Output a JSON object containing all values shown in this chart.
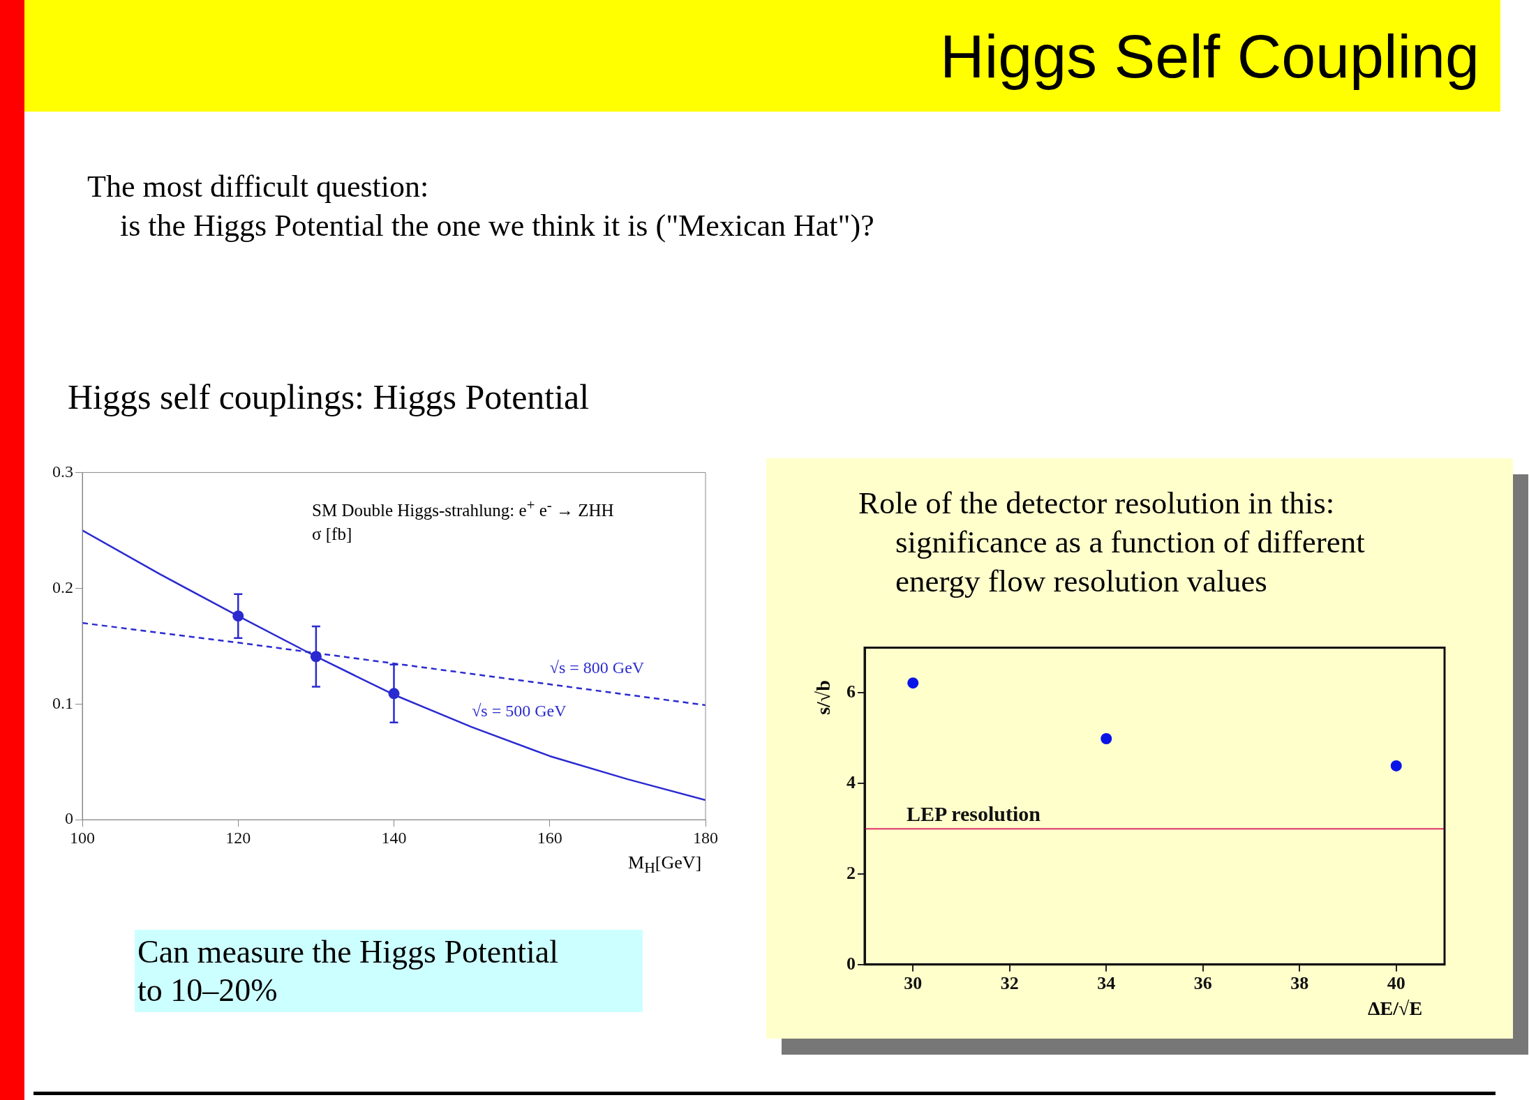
{
  "chart_data": [
    {
      "type": "line",
      "subtitle": "Higgs self couplings: Higgs Potential",
      "xlabel": "M$_{H}$[GeV]",
      "xlim": [
        100,
        180
      ],
      "xticks": [
        100,
        120,
        140,
        160,
        180
      ],
      "ylim": [
        0,
        0.3
      ],
      "yticks": [
        0,
        0.1,
        0.2,
        0.3
      ],
      "grid": false,
      "legend": false,
      "annotations": [
        "The most difficult question:",
        "is the Higgs Potential the one we think it is (\"Mexican Hat\")?",
        "SM Double Higgs-strahlung: e$^{+}$ e$^{-}$ → ZHH",
        "σ [fb]",
        "Can measure the Higgs Potential to 10–20%"
      ],
      "series": [
        {
          "name": "√s = 800 GeV",
          "type": "line",
          "color": "#2a2ad0",
          "line_style": "dashed",
          "marker": "none",
          "x": [
            100,
            120,
            140,
            160,
            180
          ],
          "values": [
            0.17,
            0.153,
            0.135,
            0.117,
            0.099
          ]
        },
        {
          "name": "√s = 500 GeV",
          "type": "line",
          "color": "#2a2ad0",
          "line_style": "solid",
          "marker": "none",
          "x": [
            100,
            110,
            120,
            130,
            140,
            150,
            160,
            170,
            180
          ],
          "values": [
            0.25,
            0.212,
            0.176,
            0.141,
            0.108,
            0.08,
            0.055,
            0.035,
            0.017
          ]
        },
        {
          "type": "scatter",
          "color": "#2a2ad0",
          "marker": "circle",
          "x": [
            120,
            130,
            140
          ],
          "values": [
            0.176,
            0.141,
            0.109
          ],
          "errors": [
            [
              0.157,
              0.195
            ],
            [
              0.115,
              0.167
            ],
            [
              0.084,
              0.134
            ]
          ]
        }
      ]
    },
    {
      "type": "scatter",
      "title": "Higgs Self Coupling",
      "xlabel": "ΔE/√E",
      "ylabel": "s/√b",
      "x": [
        30,
        34,
        40
      ],
      "values": [
        6.22,
        4.99,
        4.39
      ],
      "color": "#0a14e6",
      "marker": "circle",
      "xlim": [
        29,
        41
      ],
      "xticks": [
        30,
        32,
        34,
        36,
        38,
        40
      ],
      "ylim": [
        0,
        7
      ],
      "yticks": [
        0,
        2,
        4,
        6
      ],
      "grid": false,
      "legend": false,
      "ref_lines": [
        {
          "axis": "y",
          "value": 3,
          "label": "LEP resolution",
          "color": "#e0306a"
        }
      ],
      "annotations": [
        "Role of the detector resolution in this:",
        "significance as a function of different",
        "energy flow resolution values"
      ]
    }
  ]
}
